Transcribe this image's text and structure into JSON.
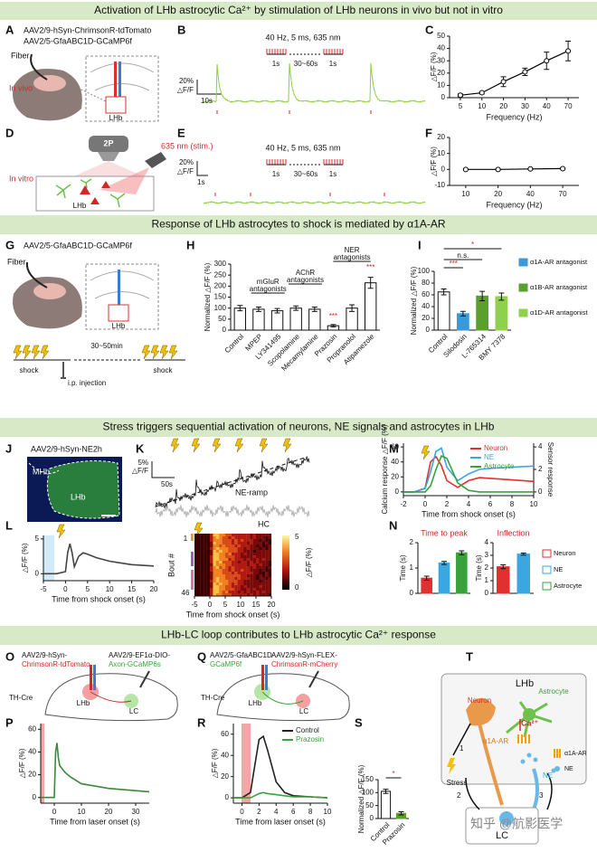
{
  "sections": [
    "Activation of LHb astrocytic Ca²⁺ by stimulation of LHb neurons in vivo but not in vitro",
    "Response of LHb astrocytes to shock is mediated by α1A-AR",
    "Stress triggers sequential activation of neurons, NE signals and astrocytes in LHb",
    "LHb-LC loop contributes to LHb astrocytic Ca²⁺ response"
  ],
  "panel_labels": [
    "A",
    "B",
    "C",
    "D",
    "E",
    "F",
    "G",
    "H",
    "I",
    "J",
    "K",
    "L",
    "M",
    "N",
    "O",
    "P",
    "Q",
    "R",
    "S",
    "T"
  ],
  "texts": {
    "A": [
      "AAV2/9-hSyn-ChrimsonR-tdTomato",
      "AAV2/5-GfaABC1D-GCaMP6f",
      "Fiber",
      "In vivo",
      "LHb"
    ],
    "B": [
      "40 Hz, 5 ms, 635 nm",
      "1s",
      "30~60s",
      "1s",
      "20%",
      "△F/F",
      "10s"
    ],
    "D": [
      "2P",
      "635 nm (stim.)",
      "In vitro",
      "LHb"
    ],
    "E": [
      "40 Hz, 5 ms, 635 nm",
      "1s",
      "30~60s",
      "1s",
      "20%",
      "△F/F",
      "1s"
    ],
    "G": [
      "AAV2/5-GfaABC1D-GCaMP6f",
      "Fiber",
      "LHb",
      "30~50min",
      "shock",
      "i.p. injection",
      "shock"
    ],
    "J": [
      "AAV2/9-hSyn-NE2h",
      "MHb",
      "LHb"
    ],
    "K": [
      "5%",
      "△F/F",
      "50s",
      "NE-ramp",
      "HC"
    ],
    "L": [
      "Bout #",
      "1",
      "46",
      "5",
      "0",
      "△F/F (%)"
    ],
    "O": [
      "AAV2/9-hSyn-",
      "ChrimsonR-tdTomato",
      "AAV2/9-EF1α-DIO-",
      "Axon-GCaMP6s",
      "TH-Cre",
      "LHb",
      "LC"
    ],
    "Q": [
      "AAV2/5-GfaABC1D-",
      "GCaMP6f",
      "AAV2/9-hSyn-FLEX-",
      "ChrimsonR-mCherry",
      "TH-Cre",
      "LHb",
      "LC"
    ],
    "T": [
      "LHb",
      "Neuron",
      "Astrocyte",
      "Ca²⁺",
      "α1A-AR",
      "NE",
      "Stress",
      "1",
      "2",
      "3",
      "LC",
      "α1A-AR",
      "NE"
    ],
    "W": [
      "知乎 @航影医学"
    ]
  },
  "traces": {
    "L": {
      "xlim": [
        -5,
        20
      ],
      "xticks": [
        -5,
        0,
        5,
        10,
        15,
        20
      ],
      "ylim": [
        -1,
        5.5
      ],
      "yticks": [
        0,
        5
      ],
      "xlabel": "Time from shock onset (s)",
      "ylabel": "△F/F (%)",
      "x": [
        -5,
        -2,
        0,
        0.5,
        1,
        1.5,
        2,
        3,
        4,
        5,
        7,
        10,
        15,
        20
      ],
      "series": [
        {
          "color": "#444444",
          "values": [
            0,
            0,
            0.3,
            3,
            4.3,
            3,
            1,
            2.5,
            3,
            2.8,
            2.3,
            1.8,
            1.3,
            1.1
          ]
        }
      ]
    },
    "Lh": {
      "xlim": [
        -5,
        20
      ],
      "xticks": [
        -5,
        0,
        5,
        10,
        15,
        20
      ],
      "xlabel": "Time from shock onset (s)"
    },
    "M": {
      "xlim": [
        -2,
        10
      ],
      "xticks": [
        -2,
        0,
        2,
        4,
        6,
        8,
        10
      ],
      "ylim": [
        -5,
        65
      ],
      "yticks": [
        0,
        20,
        40,
        60
      ],
      "y2lim": [
        -0.33,
        4.33
      ],
      "y2ticks": [
        0,
        2,
        4
      ],
      "xlabel": "Time from shock onset (s)",
      "ylabel": "Calcium response △F/F (%)",
      "y2label": "Sensor response",
      "x": [
        -2,
        -1,
        0,
        0.5,
        1,
        1.5,
        2,
        3,
        4,
        5,
        6,
        8,
        10
      ],
      "series": [
        {
          "name": "Neuron",
          "color": "#e03030",
          "values": [
            0,
            0,
            5,
            40,
            47,
            35,
            15,
            6,
            15,
            19,
            18,
            16,
            14
          ]
        },
        {
          "name": "NE",
          "color": "#3ba7e0",
          "axis": "y2",
          "values": [
            0,
            0,
            0.3,
            1.8,
            3.6,
            3.9,
            2.2,
            1.0,
            1.6,
            2.0,
            2.1,
            2.2,
            2.3
          ]
        },
        {
          "name": "Astrocyte",
          "color": "#3aa23a",
          "values": [
            0,
            0,
            0,
            8,
            30,
            48,
            45,
            12,
            2,
            0,
            0,
            0,
            0
          ]
        }
      ]
    },
    "P": {
      "xlim": [
        -5,
        35
      ],
      "xticks": [
        0,
        10,
        20,
        30
      ],
      "ylim": [
        -5,
        65
      ],
      "yticks": [
        0,
        20,
        40,
        60
      ],
      "xlabel": "Time from laser onset (s)",
      "ylabel": "△F/F (%)",
      "x": [
        -5,
        -2,
        0,
        0.5,
        1,
        1.5,
        2,
        4,
        6,
        10,
        15,
        20,
        25,
        30,
        35
      ],
      "series": [
        {
          "color": "#3a8a3a",
          "values": [
            0,
            0,
            0,
            40,
            48,
            35,
            28,
            22,
            18,
            12,
            10,
            8,
            7,
            6,
            5
          ]
        }
      ]
    },
    "R": {
      "xlim": [
        -1,
        10
      ],
      "xticks": [
        0,
        2,
        4,
        6,
        8,
        10
      ],
      "ylim": [
        -5,
        70
      ],
      "yticks": [
        0,
        20,
        40,
        60
      ],
      "xlabel": "Time from laser onset (s)",
      "ylabel": "△F/F (%)",
      "x": [
        -1,
        0,
        1,
        1.5,
        2,
        2.5,
        3,
        4,
        5,
        6,
        8,
        10
      ],
      "series": [
        {
          "name": "Control",
          "color": "#222222",
          "values": [
            0,
            0,
            5,
            30,
            55,
            58,
            45,
            15,
            5,
            2,
            1,
            0
          ]
        },
        {
          "name": "Prazosin",
          "color": "#3aa23a",
          "values": [
            0,
            0,
            0,
            2,
            4,
            5,
            4,
            3,
            2,
            1,
            1,
            0
          ]
        }
      ]
    }
  },
  "chart_data": [
    {
      "type": "line",
      "categories": [
        5,
        10,
        20,
        30,
        40,
        70
      ],
      "values": [
        2,
        4,
        13,
        21,
        30,
        38
      ],
      "errors": [
        1,
        1,
        4,
        3,
        7,
        8
      ],
      "color": "#000000",
      "ylim": [
        0,
        50
      ],
      "yticks": [
        0,
        10,
        20,
        30,
        40,
        50
      ],
      "xlabel": "Frequency (Hz)",
      "ylabel": "△F/F (%)"
    },
    {
      "type": "line",
      "categories": [
        10,
        20,
        40,
        70
      ],
      "values": [
        0,
        0,
        0.3,
        0.5
      ],
      "errors": [
        0.3,
        0.3,
        0.3,
        0.3
      ],
      "color": "#000000",
      "ylim": [
        -10,
        20
      ],
      "yticks": [
        -10,
        0,
        10,
        20
      ],
      "xlabel": "Frequency (Hz)",
      "ylabel": "△F/F (%)"
    },
    {
      "type": "bar",
      "categories": [
        "Control",
        "MPEP",
        "LY341495",
        "Scopolamine",
        "Mecamylamine",
        "Prazosin",
        "Propranolol",
        "Atipamezole"
      ],
      "values": [
        100,
        95,
        88,
        100,
        95,
        20,
        100,
        215
      ],
      "errors": [
        12,
        10,
        10,
        10,
        10,
        5,
        15,
        25
      ],
      "colors": [
        "#ffffff",
        "#ffffff",
        "#ffffff",
        "#ffffff",
        "#ffffff",
        "#ffffff",
        "#ffffff",
        "#ffffff"
      ],
      "ylim": [
        0,
        300
      ],
      "yticks": [
        0,
        50,
        100,
        150,
        200,
        250,
        300
      ],
      "ylabel": "Normalized △F/F (%)",
      "annotations": [
        "mGluR",
        "antagonists",
        "AChR",
        "antagonists",
        "NER",
        "antagonists",
        "***",
        "***"
      ]
    },
    {
      "type": "bar",
      "categories": [
        "Control",
        "Silodosin",
        "L-765314",
        "BMY 7378"
      ],
      "values": [
        65,
        28,
        58,
        57
      ],
      "errors": [
        5,
        4,
        8,
        6
      ],
      "colors": [
        "#ffffff",
        "#3a9ad9",
        "#5aa02c",
        "#8fd14f"
      ],
      "ylim": [
        0,
        100
      ],
      "yticks": [
        0,
        20,
        40,
        60,
        80,
        100
      ],
      "ylabel": "Normalized △F/F (%)",
      "annotations": [
        "***",
        "n.s.",
        "*"
      ],
      "legend": [
        "α1A-AR antagonist",
        "α1B-AR antagonist",
        "α1D-AR antagonist"
      ]
    },
    {
      "type": "bar",
      "title": "Time to peak",
      "values": [
        0.6,
        1.2,
        1.6
      ],
      "errors": [
        0.08,
        0.06,
        0.08
      ],
      "colors": [
        "#e03030",
        "#3ba7e0",
        "#3aa23a"
      ],
      "ylim": [
        0,
        2
      ],
      "yticks": [
        0,
        1,
        2
      ],
      "ylabel": "Time (s)",
      "legend": [
        "Neuron",
        "NE",
        "Astrocyte"
      ]
    },
    {
      "type": "bar",
      "title": "Inflection",
      "values": [
        2.1,
        3.1
      ],
      "errors": [
        0.15,
        0.08
      ],
      "colors": [
        "#e03030",
        "#3ba7e0"
      ],
      "ylim": [
        0,
        4
      ],
      "yticks": [
        0,
        1,
        2,
        3,
        4
      ],
      "ylabel": "Time (s)"
    },
    {
      "type": "bar",
      "categories": [
        "Control",
        "Prazosin"
      ],
      "values": [
        105,
        20
      ],
      "errors": [
        8,
        6
      ],
      "colors": [
        "#ffffff",
        "#5aa02c"
      ],
      "ylim": [
        0,
        150
      ],
      "yticks": [
        0,
        50,
        100,
        150
      ],
      "ylabel": "Normalized △F/F (%)",
      "annotations": [
        "*"
      ]
    }
  ]
}
